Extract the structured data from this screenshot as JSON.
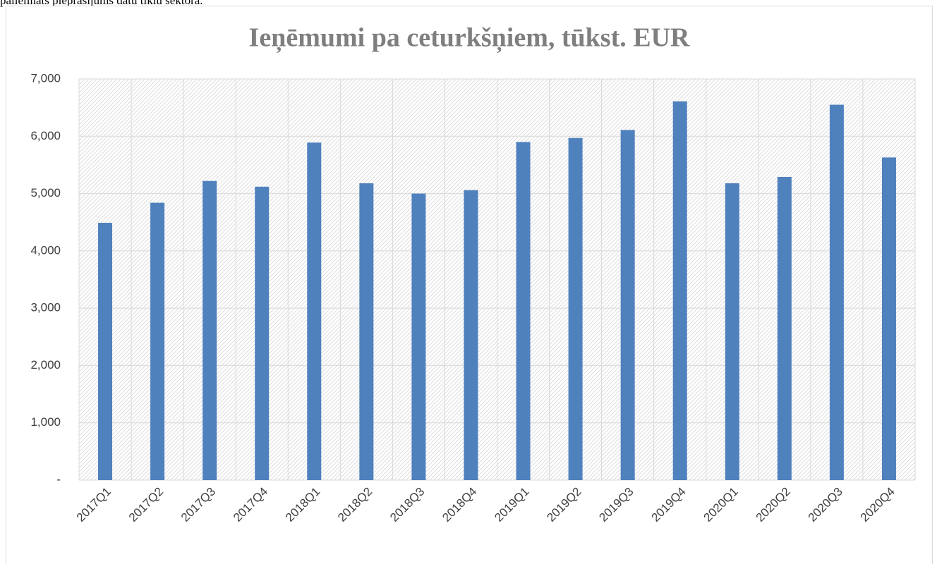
{
  "caption": "palielināts pieprasījums datu tīklu sektorā.",
  "chart_data": {
    "type": "bar",
    "title": "Ieņēmumi pa ceturkšņiem, tūkst. EUR",
    "categories": [
      "2017Q1",
      "2017Q2",
      "2017Q3",
      "2017Q4",
      "2018Q1",
      "2018Q2",
      "2018Q3",
      "2018Q4",
      "2019Q1",
      "2019Q2",
      "2019Q3",
      "2019Q4",
      "2020Q1",
      "2020Q2",
      "2020Q3",
      "2020Q4"
    ],
    "values": [
      4490,
      4840,
      5220,
      5120,
      5890,
      5180,
      5000,
      5060,
      5900,
      5970,
      6110,
      6610,
      5180,
      5290,
      6550,
      5630
    ],
    "color": "#4f81bd",
    "ylim": [
      0,
      7000
    ],
    "yticks": [
      {
        "value": 0,
        "label": "-"
      },
      {
        "value": 1000,
        "label": "1,000"
      },
      {
        "value": 2000,
        "label": "2,000"
      },
      {
        "value": 3000,
        "label": "3,000"
      },
      {
        "value": 4000,
        "label": "4,000"
      },
      {
        "value": 5000,
        "label": "5,000"
      },
      {
        "value": 6000,
        "label": "6,000"
      },
      {
        "value": 7000,
        "label": "7,000"
      }
    ],
    "grid": true
  }
}
